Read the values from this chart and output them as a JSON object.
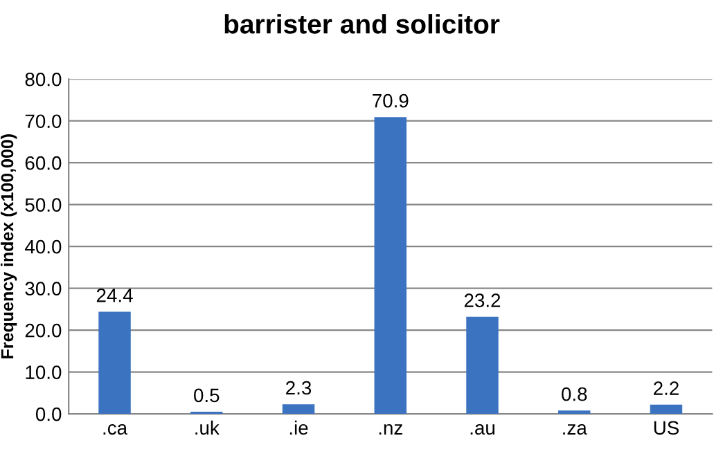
{
  "chart_data": {
    "type": "bar",
    "title": "barrister and solicitor",
    "ylabel": "Frequency index (x100,000)",
    "categories": [
      ".ca",
      ".uk",
      ".ie",
      ".nz",
      ".au",
      ".za",
      "US"
    ],
    "values": [
      24.4,
      0.5,
      2.3,
      70.9,
      23.2,
      0.8,
      2.2
    ],
    "color": "#3b73c0",
    "ylim": [
      0,
      80
    ],
    "yticks": [
      {
        "value": 0,
        "label": "0.0"
      },
      {
        "value": 10,
        "label": "10.0"
      },
      {
        "value": 20,
        "label": "20.0"
      },
      {
        "value": 30,
        "label": "30.0"
      },
      {
        "value": 40,
        "label": "40.0"
      },
      {
        "value": 50,
        "label": "50.0"
      },
      {
        "value": 60,
        "label": "60.0"
      },
      {
        "value": 70,
        "label": "70.0"
      },
      {
        "value": 80,
        "label": "80.0"
      }
    ],
    "grid": "y",
    "data_labels": true,
    "legend": false
  }
}
